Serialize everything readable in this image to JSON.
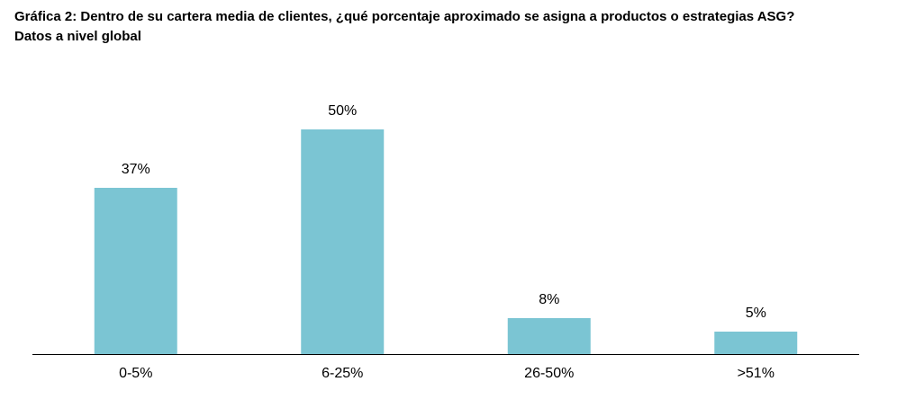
{
  "chart_data": {
    "type": "bar",
    "title": "Gráfica 2: Dentro de su cartera media de clientes, ¿qué porcentaje aproximado se asigna a productos o estrategias ASG?",
    "subtitle": "Datos a nivel global",
    "categories": [
      "0-5%",
      "6-25%",
      "26-50%",
      ">51%"
    ],
    "values": [
      37,
      50,
      8,
      5
    ],
    "value_labels": [
      "37%",
      "50%",
      "8%",
      "5%"
    ],
    "ylim": [
      0,
      60
    ],
    "xlabel": "",
    "ylabel": "",
    "grid": false,
    "legend": "none",
    "bar_color": "#7bc5d3",
    "axis_color": "#000000"
  }
}
